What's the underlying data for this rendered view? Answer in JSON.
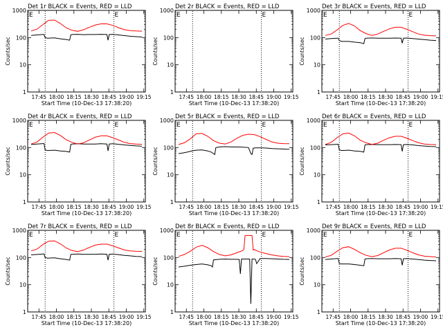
{
  "figure": {
    "xlabel": "Start Time (10-Dec-13 17:38:20)",
    "ylabel": "Counts/sec",
    "x_ticks": [
      "17:45",
      "18:00",
      "18:15",
      "18:30",
      "18:45",
      "19:00",
      "19:15"
    ],
    "y_ticks": [
      "1",
      "10",
      "100",
      "1000"
    ],
    "flag_letter": "E",
    "colors": {
      "events": "#000000",
      "lld": "#ff0000",
      "axes": "#000000"
    }
  },
  "chart_data": [
    {
      "type": "line",
      "title": "Det 1r BLACK = Events, RED = LLD",
      "xlim_min": [
        -3,
        98
      ],
      "ylim": [
        1,
        1000
      ],
      "yscale": "log",
      "markers_min": [
        12,
        71
      ],
      "series": [
        {
          "name": "Events",
          "x": [
            0,
            5,
            10,
            11,
            12,
            14,
            20,
            25,
            30,
            33,
            34,
            35,
            40,
            45,
            50,
            55,
            60,
            65,
            66,
            67,
            70,
            75,
            80,
            85,
            90,
            95
          ],
          "y": [
            120,
            125,
            130,
            130,
            100,
            95,
            98,
            90,
            85,
            80,
            125,
            130,
            132,
            128,
            130,
            130,
            132,
            130,
            80,
            130,
            132,
            125,
            118,
            112,
            108,
            105
          ]
        },
        {
          "name": "LLD",
          "x": [
            0,
            5,
            10,
            15,
            20,
            25,
            30,
            35,
            40,
            45,
            50,
            55,
            60,
            65,
            70,
            75,
            80,
            85,
            90,
            95
          ],
          "y": [
            175,
            205,
            300,
            430,
            440,
            330,
            230,
            185,
            170,
            195,
            240,
            290,
            320,
            320,
            280,
            230,
            195,
            180,
            175,
            172
          ]
        }
      ]
    },
    {
      "type": "line",
      "title": "Det 2r BLACK = Events, RED = LLD",
      "xlim_min": [
        -3,
        98
      ],
      "ylim": [
        1,
        1000
      ],
      "yscale": "log",
      "markers_min": [
        12,
        71
      ],
      "series": []
    },
    {
      "type": "line",
      "title": "Det 3r BLACK = Events, RED = LLD",
      "xlim_min": [
        -3,
        98
      ],
      "ylim": [
        1,
        1000
      ],
      "yscale": "log",
      "markers_min": [
        12,
        71
      ],
      "series": [
        {
          "name": "Events",
          "x": [
            0,
            5,
            10,
            11,
            12,
            14,
            20,
            25,
            30,
            33,
            34,
            35,
            40,
            45,
            50,
            55,
            60,
            65,
            66,
            67,
            70,
            75,
            80,
            85,
            90,
            95
          ],
          "y": [
            88,
            92,
            95,
            95,
            78,
            72,
            72,
            68,
            65,
            60,
            92,
            95,
            97,
            95,
            95,
            95,
            96,
            95,
            62,
            95,
            96,
            92,
            88,
            84,
            80,
            78
          ]
        },
        {
          "name": "LLD",
          "x": [
            0,
            5,
            10,
            15,
            20,
            25,
            30,
            35,
            40,
            45,
            50,
            55,
            60,
            65,
            70,
            75,
            80,
            85,
            90,
            95
          ],
          "y": [
            120,
            135,
            190,
            280,
            330,
            270,
            180,
            140,
            120,
            135,
            170,
            210,
            240,
            240,
            200,
            165,
            135,
            122,
            118,
            115
          ]
        }
      ]
    },
    {
      "type": "line",
      "title": "Det 4r BLACK = Events, RED = LLD",
      "xlim_min": [
        -3,
        98
      ],
      "ylim": [
        1,
        1000
      ],
      "yscale": "log",
      "markers_min": [
        12,
        71
      ],
      "series": [
        {
          "name": "Events",
          "x": [
            0,
            5,
            10,
            11,
            12,
            14,
            20,
            25,
            30,
            33,
            34,
            35,
            40,
            45,
            50,
            55,
            60,
            65,
            66,
            67,
            70,
            75,
            80,
            85,
            90,
            95
          ],
          "y": [
            130,
            135,
            140,
            140,
            82,
            78,
            80,
            75,
            72,
            68,
            130,
            135,
            138,
            135,
            135,
            135,
            138,
            135,
            75,
            135,
            138,
            132,
            125,
            120,
            115,
            112
          ]
        },
        {
          "name": "LLD",
          "x": [
            0,
            5,
            10,
            15,
            20,
            25,
            30,
            35,
            40,
            45,
            50,
            55,
            60,
            65,
            70,
            75,
            80,
            85,
            90,
            95
          ],
          "y": [
            135,
            160,
            240,
            340,
            360,
            280,
            195,
            155,
            135,
            150,
            190,
            240,
            270,
            270,
            230,
            190,
            155,
            140,
            135,
            132
          ]
        }
      ]
    },
    {
      "type": "line",
      "title": "Det 5r BLACK = Events, RED = LLD",
      "xlim_min": [
        -3,
        98
      ],
      "ylim": [
        1,
        1000
      ],
      "yscale": "log",
      "markers_min": [
        12,
        71
      ],
      "series": [
        {
          "name": "Events",
          "x": [
            0,
            5,
            10,
            12,
            15,
            20,
            25,
            28,
            30,
            31,
            32,
            35,
            40,
            45,
            50,
            55,
            60,
            62,
            63,
            64,
            66,
            70,
            75,
            80,
            85,
            90,
            95
          ],
          "y": [
            60,
            65,
            72,
            76,
            80,
            82,
            75,
            68,
            60,
            55,
            100,
            105,
            108,
            105,
            105,
            104,
            100,
            60,
            55,
            95,
            98,
            98,
            96,
            92,
            90,
            88,
            86
          ]
        },
        {
          "name": "LLD",
          "x": [
            0,
            5,
            10,
            15,
            20,
            25,
            30,
            35,
            40,
            45,
            50,
            55,
            60,
            65,
            70,
            75,
            80,
            85,
            90,
            95
          ],
          "y": [
            130,
            150,
            210,
            320,
            330,
            260,
            180,
            145,
            135,
            160,
            220,
            280,
            310,
            300,
            250,
            200,
            160,
            145,
            140,
            138
          ]
        }
      ]
    },
    {
      "type": "line",
      "title": "Det 6r BLACK = Events, RED = LLD",
      "xlim_min": [
        -3,
        98
      ],
      "ylim": [
        1,
        1000
      ],
      "yscale": "log",
      "markers_min": [
        12,
        71
      ],
      "series": [
        {
          "name": "Events",
          "x": [
            0,
            5,
            10,
            11,
            12,
            14,
            20,
            25,
            30,
            33,
            34,
            35,
            40,
            45,
            50,
            55,
            60,
            65,
            66,
            67,
            70,
            75,
            80,
            85,
            90,
            95
          ],
          "y": [
            125,
            128,
            132,
            132,
            82,
            78,
            80,
            75,
            72,
            68,
            125,
            128,
            130,
            128,
            128,
            128,
            130,
            128,
            72,
            128,
            130,
            125,
            118,
            114,
            110,
            108
          ]
        },
        {
          "name": "LLD",
          "x": [
            0,
            5,
            10,
            15,
            20,
            25,
            30,
            35,
            40,
            45,
            50,
            55,
            60,
            65,
            70,
            75,
            80,
            85,
            90,
            95
          ],
          "y": [
            130,
            155,
            230,
            320,
            340,
            270,
            185,
            150,
            130,
            145,
            185,
            230,
            260,
            260,
            220,
            180,
            150,
            135,
            130,
            128
          ]
        }
      ]
    },
    {
      "type": "line",
      "title": "Det 7r BLACK = Events, RED = LLD",
      "xlim_min": [
        -3,
        98
      ],
      "ylim": [
        1,
        1000
      ],
      "yscale": "log",
      "markers_min": [
        12,
        71
      ],
      "series": [
        {
          "name": "Events",
          "x": [
            0,
            5,
            10,
            11,
            12,
            14,
            20,
            25,
            30,
            33,
            34,
            35,
            40,
            45,
            50,
            55,
            60,
            65,
            66,
            67,
            70,
            75,
            80,
            85,
            90,
            95
          ],
          "y": [
            125,
            130,
            135,
            135,
            100,
            95,
            98,
            90,
            85,
            80,
            130,
            132,
            135,
            132,
            132,
            132,
            135,
            132,
            80,
            132,
            135,
            128,
            120,
            115,
            110,
            108
          ]
        },
        {
          "name": "LLD",
          "x": [
            0,
            5,
            10,
            15,
            20,
            25,
            30,
            35,
            40,
            45,
            50,
            55,
            60,
            65,
            70,
            75,
            80,
            85,
            90,
            95
          ],
          "y": [
            175,
            205,
            300,
            400,
            410,
            320,
            225,
            180,
            165,
            190,
            235,
            285,
            310,
            310,
            270,
            225,
            190,
            175,
            170,
            168
          ]
        }
      ]
    },
    {
      "type": "line",
      "title": "Det 8r BLACK = Events, RED = LLD",
      "xlim_min": [
        -3,
        98
      ],
      "ylim": [
        1,
        1000
      ],
      "yscale": "log",
      "markers_min": [
        12,
        71
      ],
      "series": [
        {
          "name": "Events",
          "x": [
            0,
            5,
            10,
            15,
            20,
            25,
            28,
            29,
            30,
            35,
            40,
            45,
            50,
            52,
            53,
            54,
            55,
            58,
            61,
            62,
            63,
            64,
            66,
            67,
            70,
            75,
            80,
            85,
            90,
            95
          ],
          "y": [
            45,
            48,
            52,
            55,
            58,
            54,
            50,
            45,
            82,
            86,
            88,
            86,
            86,
            85,
            25,
            88,
            88,
            88,
            88,
            2,
            88,
            88,
            86,
            60,
            92,
            92,
            90,
            88,
            86,
            85
          ]
        },
        {
          "name": "LLD",
          "x": [
            0,
            5,
            10,
            15,
            20,
            25,
            30,
            35,
            40,
            45,
            50,
            55,
            56,
            57,
            58,
            60,
            62,
            63,
            64,
            65,
            66,
            70,
            75,
            80,
            85,
            90,
            95
          ],
          "y": [
            110,
            130,
            170,
            240,
            280,
            230,
            165,
            130,
            115,
            125,
            150,
            180,
            200,
            630,
            650,
            650,
            650,
            640,
            190,
            200,
            185,
            160,
            140,
            125,
            115,
            110,
            108
          ]
        }
      ]
    },
    {
      "type": "line",
      "title": "Det 9r BLACK = Events, RED = LLD",
      "xlim_min": [
        -3,
        98
      ],
      "ylim": [
        1,
        1000
      ],
      "yscale": "log",
      "markers_min": [
        12,
        71
      ],
      "series": [
        {
          "name": "Events",
          "x": [
            0,
            5,
            10,
            11,
            12,
            14,
            20,
            25,
            30,
            33,
            34,
            35,
            40,
            45,
            50,
            55,
            60,
            65,
            66,
            67,
            70,
            75,
            80,
            85,
            90,
            95
          ],
          "y": [
            85,
            88,
            92,
            92,
            60,
            58,
            58,
            55,
            52,
            50,
            88,
            90,
            92,
            90,
            90,
            90,
            92,
            90,
            52,
            90,
            92,
            88,
            84,
            80,
            78,
            76
          ]
        },
        {
          "name": "LLD",
          "x": [
            0,
            5,
            10,
            15,
            20,
            25,
            30,
            35,
            40,
            45,
            50,
            55,
            60,
            65,
            70,
            75,
            80,
            85,
            90,
            95
          ],
          "y": [
            105,
            120,
            170,
            230,
            250,
            200,
            150,
            120,
            108,
            118,
            150,
            190,
            220,
            220,
            185,
            150,
            125,
            112,
            108,
            105
          ]
        }
      ]
    }
  ]
}
